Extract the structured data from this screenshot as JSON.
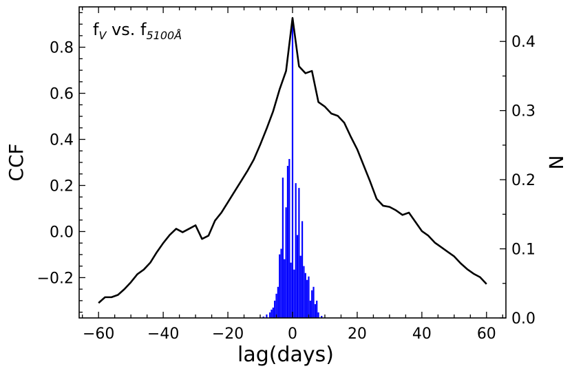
{
  "chart_data": {
    "type": "line",
    "annotation": {
      "base1": "f",
      "sub1": "V",
      "middle": " vs. f",
      "sub2": "5100Å"
    },
    "xlabel": "lag(days)",
    "ylabel_left": "CCF",
    "ylabel_right": "N",
    "xlim": [
      -66,
      66
    ],
    "ylim_left": [
      -0.375,
      0.975
    ],
    "ylim_right": [
      0,
      0.45
    ],
    "x_ticks": [
      -60,
      -40,
      -20,
      0,
      20,
      40,
      60
    ],
    "x_tick_labels": [
      "−60",
      "−40",
      "−20",
      "0",
      "20",
      "40",
      "60"
    ],
    "y_left_ticks": [
      -0.2,
      0.0,
      0.2,
      0.4,
      0.6,
      0.8
    ],
    "y_left_tick_labels": [
      "−0.2",
      "0.0",
      "0.2",
      "0.4",
      "0.6",
      "0.8"
    ],
    "y_right_ticks": [
      0.0,
      0.1,
      0.2,
      0.3,
      0.4
    ],
    "y_right_tick_labels": [
      "0.0",
      "0.1",
      "0.2",
      "0.3",
      "0.4"
    ],
    "colors": {
      "ccf": "#000000",
      "hist": "#0000ff"
    },
    "ccf": {
      "name": "CCF",
      "x": [
        -60,
        -58,
        -56,
        -54,
        -52,
        -50,
        -48,
        -46,
        -44,
        -42,
        -40,
        -38,
        -36,
        -34,
        -32,
        -30,
        -28,
        -26,
        -24,
        -22,
        -20,
        -18,
        -16,
        -14,
        -12,
        -10,
        -8,
        -6,
        -4,
        -2,
        0,
        2,
        4,
        6,
        8,
        10,
        12,
        14,
        16,
        18,
        20,
        22,
        24,
        26,
        28,
        30,
        32,
        34,
        36,
        38,
        40,
        42,
        44,
        46,
        48,
        50,
        52,
        54,
        56,
        58,
        60
      ],
      "y": [
        -0.31,
        -0.285,
        -0.285,
        -0.275,
        -0.25,
        -0.22,
        -0.185,
        -0.165,
        -0.135,
        -0.09,
        -0.05,
        -0.015,
        0.012,
        -0.003,
        0.012,
        0.027,
        -0.032,
        -0.018,
        0.047,
        0.082,
        0.127,
        0.172,
        0.217,
        0.262,
        0.312,
        0.377,
        0.447,
        0.522,
        0.617,
        0.697,
        0.927,
        0.717,
        0.687,
        0.697,
        0.562,
        0.542,
        0.512,
        0.502,
        0.472,
        0.412,
        0.357,
        0.287,
        0.217,
        0.142,
        0.112,
        0.107,
        0.092,
        0.072,
        0.082,
        0.042,
        0.002,
        -0.018,
        -0.048,
        -0.068,
        -0.088,
        -0.108,
        -0.138,
        -0.163,
        -0.183,
        -0.198,
        -0.228
      ]
    },
    "histogram": {
      "name": "N",
      "x": [
        -9.0,
        -8.0,
        -7.0,
        -6.5,
        -6.0,
        -5.5,
        -5.0,
        -4.5,
        -4.0,
        -3.5,
        -3.0,
        -2.5,
        -2.0,
        -1.5,
        -1.0,
        -0.5,
        0.0,
        0.5,
        1.0,
        1.5,
        2.0,
        2.5,
        3.0,
        3.5,
        4.0,
        4.5,
        5.0,
        5.5,
        6.0,
        6.5,
        7.0,
        7.5,
        8.0,
        9.0
      ],
      "y": [
        0.002,
        0.005,
        0.008,
        0.012,
        0.015,
        0.025,
        0.035,
        0.045,
        0.092,
        0.1,
        0.203,
        0.085,
        0.16,
        0.22,
        0.23,
        0.08,
        0.43,
        0.07,
        0.195,
        0.12,
        0.188,
        0.09,
        0.14,
        0.075,
        0.065,
        0.055,
        0.06,
        0.025,
        0.04,
        0.045,
        0.02,
        0.025,
        0.008,
        0.003
      ]
    }
  }
}
